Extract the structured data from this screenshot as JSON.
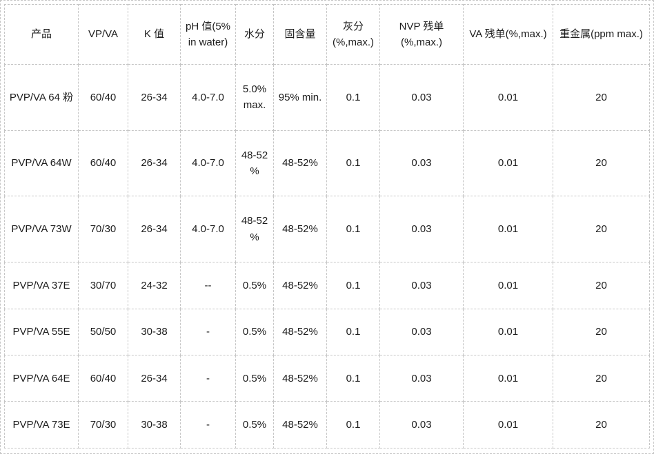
{
  "colors": {
    "border": "#c6c6c6",
    "text": "#1c1c1c",
    "background": "#ffffff"
  },
  "table": {
    "headers": [
      "产品",
      "VP/VA",
      "K 值",
      "pH 值(5% in water)",
      "水分",
      "固含量",
      "灰分 (%,max.)",
      "NVP 残单 (%,max.)",
      "VA 残单(%,max.)",
      "重金属(ppm max.)"
    ],
    "rows": [
      [
        "PVP/VA 64 粉",
        "60/40",
        "26-34",
        "4.0-7.0",
        "5.0% max.",
        "95% min.",
        "0.1",
        "0.03",
        "0.01",
        "20"
      ],
      [
        "PVP/VA 64W",
        "60/40",
        "26-34",
        "4.0-7.0",
        "48-52 %",
        "48-52%",
        "0.1",
        "0.03",
        "0.01",
        "20"
      ],
      [
        "PVP/VA 73W",
        "70/30",
        "26-34",
        "4.0-7.0",
        "48-52 %",
        "48-52%",
        "0.1",
        "0.03",
        "0.01",
        "20"
      ],
      [
        "PVP/VA 37E",
        "30/70",
        "24-32",
        "--",
        "0.5%",
        "48-52%",
        "0.1",
        "0.03",
        "0.01",
        "20"
      ],
      [
        "PVP/VA 55E",
        "50/50",
        "30-38",
        "-",
        "0.5%",
        "48-52%",
        "0.1",
        "0.03",
        "0.01",
        "20"
      ],
      [
        "PVP/VA 64E",
        "60/40",
        "26-34",
        "-",
        "0.5%",
        "48-52%",
        "0.1",
        "0.03",
        "0.01",
        "20"
      ],
      [
        "PVP/VA 73E",
        "70/30",
        "30-38",
        "-",
        "0.5%",
        "48-52%",
        "0.1",
        "0.03",
        "0.01",
        "20"
      ]
    ]
  }
}
